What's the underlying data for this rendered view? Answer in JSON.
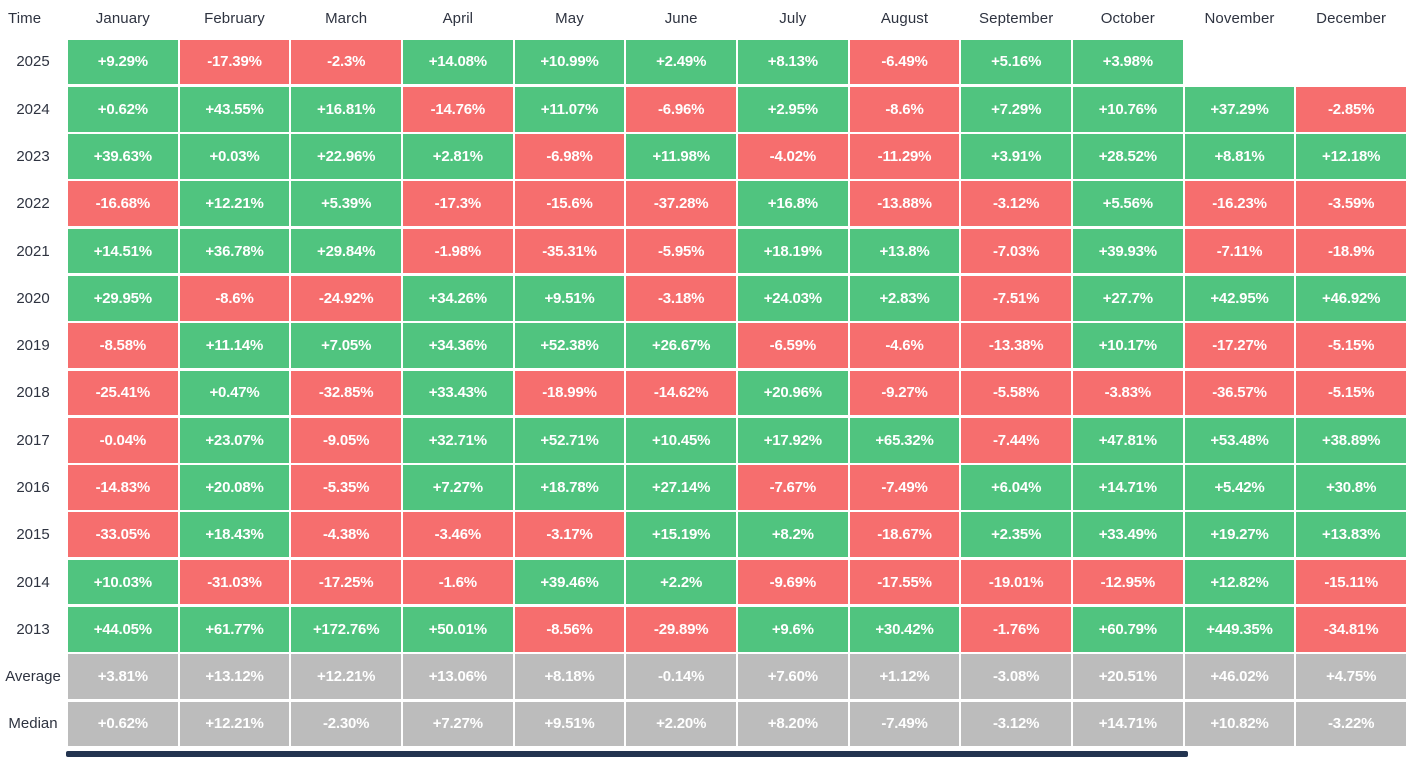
{
  "colors": {
    "positive": "#50C47F",
    "negative": "#F66E6E",
    "summary": "#BCBCBC",
    "header_text": "#2E3340",
    "cell_text": "#FFFFFF",
    "scrollbar": "#233450"
  },
  "chart_data": {
    "type": "heatmap",
    "corner_label": "Time",
    "value_format": "percent",
    "color_rule": {
      "positive": "green",
      "negative": "red",
      "summary_rows": "gray",
      "missing": "blank"
    },
    "columns": [
      "January",
      "February",
      "March",
      "April",
      "May",
      "June",
      "July",
      "August",
      "September",
      "October",
      "November",
      "December"
    ],
    "rows": [
      {
        "label": "2025",
        "kind": "year",
        "values": [
          "+9.29%",
          "-17.39%",
          "-2.3%",
          "+14.08%",
          "+10.99%",
          "+2.49%",
          "+8.13%",
          "-6.49%",
          "+5.16%",
          "+3.98%",
          "",
          ""
        ]
      },
      {
        "label": "2024",
        "kind": "year",
        "values": [
          "+0.62%",
          "+43.55%",
          "+16.81%",
          "-14.76%",
          "+11.07%",
          "-6.96%",
          "+2.95%",
          "-8.6%",
          "+7.29%",
          "+10.76%",
          "+37.29%",
          "-2.85%"
        ]
      },
      {
        "label": "2023",
        "kind": "year",
        "values": [
          "+39.63%",
          "+0.03%",
          "+22.96%",
          "+2.81%",
          "-6.98%",
          "+11.98%",
          "-4.02%",
          "-11.29%",
          "+3.91%",
          "+28.52%",
          "+8.81%",
          "+12.18%"
        ]
      },
      {
        "label": "2022",
        "kind": "year",
        "values": [
          "-16.68%",
          "+12.21%",
          "+5.39%",
          "-17.3%",
          "-15.6%",
          "-37.28%",
          "+16.8%",
          "-13.88%",
          "-3.12%",
          "+5.56%",
          "-16.23%",
          "-3.59%"
        ]
      },
      {
        "label": "2021",
        "kind": "year",
        "values": [
          "+14.51%",
          "+36.78%",
          "+29.84%",
          "-1.98%",
          "-35.31%",
          "-5.95%",
          "+18.19%",
          "+13.8%",
          "-7.03%",
          "+39.93%",
          "-7.11%",
          "-18.9%"
        ]
      },
      {
        "label": "2020",
        "kind": "year",
        "values": [
          "+29.95%",
          "-8.6%",
          "-24.92%",
          "+34.26%",
          "+9.51%",
          "-3.18%",
          "+24.03%",
          "+2.83%",
          "-7.51%",
          "+27.7%",
          "+42.95%",
          "+46.92%"
        ]
      },
      {
        "label": "2019",
        "kind": "year",
        "values": [
          "-8.58%",
          "+11.14%",
          "+7.05%",
          "+34.36%",
          "+52.38%",
          "+26.67%",
          "-6.59%",
          "-4.6%",
          "-13.38%",
          "+10.17%",
          "-17.27%",
          "-5.15%"
        ]
      },
      {
        "label": "2018",
        "kind": "year",
        "values": [
          "-25.41%",
          "+0.47%",
          "-32.85%",
          "+33.43%",
          "-18.99%",
          "-14.62%",
          "+20.96%",
          "-9.27%",
          "-5.58%",
          "-3.83%",
          "-36.57%",
          "-5.15%"
        ]
      },
      {
        "label": "2017",
        "kind": "year",
        "values": [
          "-0.04%",
          "+23.07%",
          "-9.05%",
          "+32.71%",
          "+52.71%",
          "+10.45%",
          "+17.92%",
          "+65.32%",
          "-7.44%",
          "+47.81%",
          "+53.48%",
          "+38.89%"
        ]
      },
      {
        "label": "2016",
        "kind": "year",
        "values": [
          "-14.83%",
          "+20.08%",
          "-5.35%",
          "+7.27%",
          "+18.78%",
          "+27.14%",
          "-7.67%",
          "-7.49%",
          "+6.04%",
          "+14.71%",
          "+5.42%",
          "+30.8%"
        ]
      },
      {
        "label": "2015",
        "kind": "year",
        "values": [
          "-33.05%",
          "+18.43%",
          "-4.38%",
          "-3.46%",
          "-3.17%",
          "+15.19%",
          "+8.2%",
          "-18.67%",
          "+2.35%",
          "+33.49%",
          "+19.27%",
          "+13.83%"
        ]
      },
      {
        "label": "2014",
        "kind": "year",
        "values": [
          "+10.03%",
          "-31.03%",
          "-17.25%",
          "-1.6%",
          "+39.46%",
          "+2.2%",
          "-9.69%",
          "-17.55%",
          "-19.01%",
          "-12.95%",
          "+12.82%",
          "-15.11%"
        ]
      },
      {
        "label": "2013",
        "kind": "year",
        "values": [
          "+44.05%",
          "+61.77%",
          "+172.76%",
          "+50.01%",
          "-8.56%",
          "-29.89%",
          "+9.6%",
          "+30.42%",
          "-1.76%",
          "+60.79%",
          "+449.35%",
          "-34.81%"
        ]
      },
      {
        "label": "Average",
        "kind": "summary",
        "values": [
          "+3.81%",
          "+13.12%",
          "+12.21%",
          "+13.06%",
          "+8.18%",
          "-0.14%",
          "+7.60%",
          "+1.12%",
          "-3.08%",
          "+20.51%",
          "+46.02%",
          "+4.75%"
        ]
      },
      {
        "label": "Median",
        "kind": "summary",
        "values": [
          "+0.62%",
          "+12.21%",
          "-2.30%",
          "+7.27%",
          "+9.51%",
          "+2.20%",
          "+8.20%",
          "-7.49%",
          "-3.12%",
          "+14.71%",
          "+10.82%",
          "-3.22%"
        ]
      }
    ]
  }
}
